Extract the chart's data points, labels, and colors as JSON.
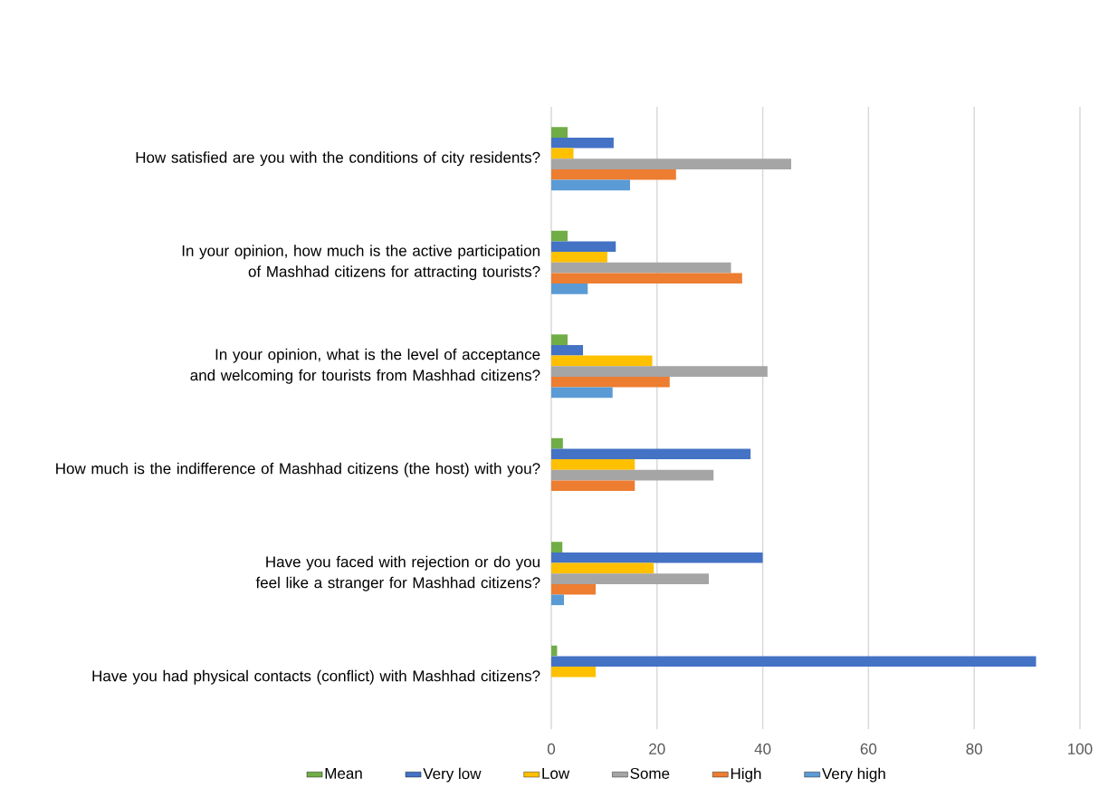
{
  "chart_data": {
    "type": "bar",
    "orientation": "horizontal",
    "categories": [
      "How satisfied are you with the conditions of city residents?",
      "In your opinion, how much is the active participation of Mashhad citizens for attracting tourists?",
      "In your opinion, what is the level of acceptance and welcoming for tourists from Mashhad citizens?",
      "How much is the indifference of Mashhad citizens (the host) with you?",
      "Have you faced with rejection or do you feel like a stranger for Mashhad citizens?",
      "Have you had physical contacts (conflict) with Mashhad citizens?"
    ],
    "series": [
      {
        "name": "Mean",
        "color": "#70ad47",
        "values": [
          3.1,
          3.1,
          3.1,
          2.2,
          2.1,
          1.1
        ]
      },
      {
        "name": "Very low",
        "color": "#4472c4",
        "values": [
          11.8,
          12.2,
          6.0,
          37.7,
          40.0,
          91.7
        ]
      },
      {
        "name": "Low",
        "color": "#ffc000",
        "values": [
          4.2,
          10.6,
          19.1,
          15.8,
          19.4,
          8.4
        ]
      },
      {
        "name": "Some",
        "color": "#a5a5a5",
        "values": [
          45.4,
          34.0,
          40.9,
          30.7,
          29.8,
          null
        ]
      },
      {
        "name": "High",
        "color": "#ed7d31",
        "values": [
          23.6,
          36.1,
          22.4,
          15.8,
          8.4,
          null
        ]
      },
      {
        "name": "Very high",
        "color": "#5b9bd5",
        "values": [
          14.9,
          6.9,
          11.6,
          null,
          2.4,
          null
        ]
      }
    ],
    "xlim": [
      0,
      100
    ],
    "xticks": [
      0,
      20,
      40,
      60,
      80,
      100
    ],
    "grid": "x",
    "legend": "bottom"
  }
}
